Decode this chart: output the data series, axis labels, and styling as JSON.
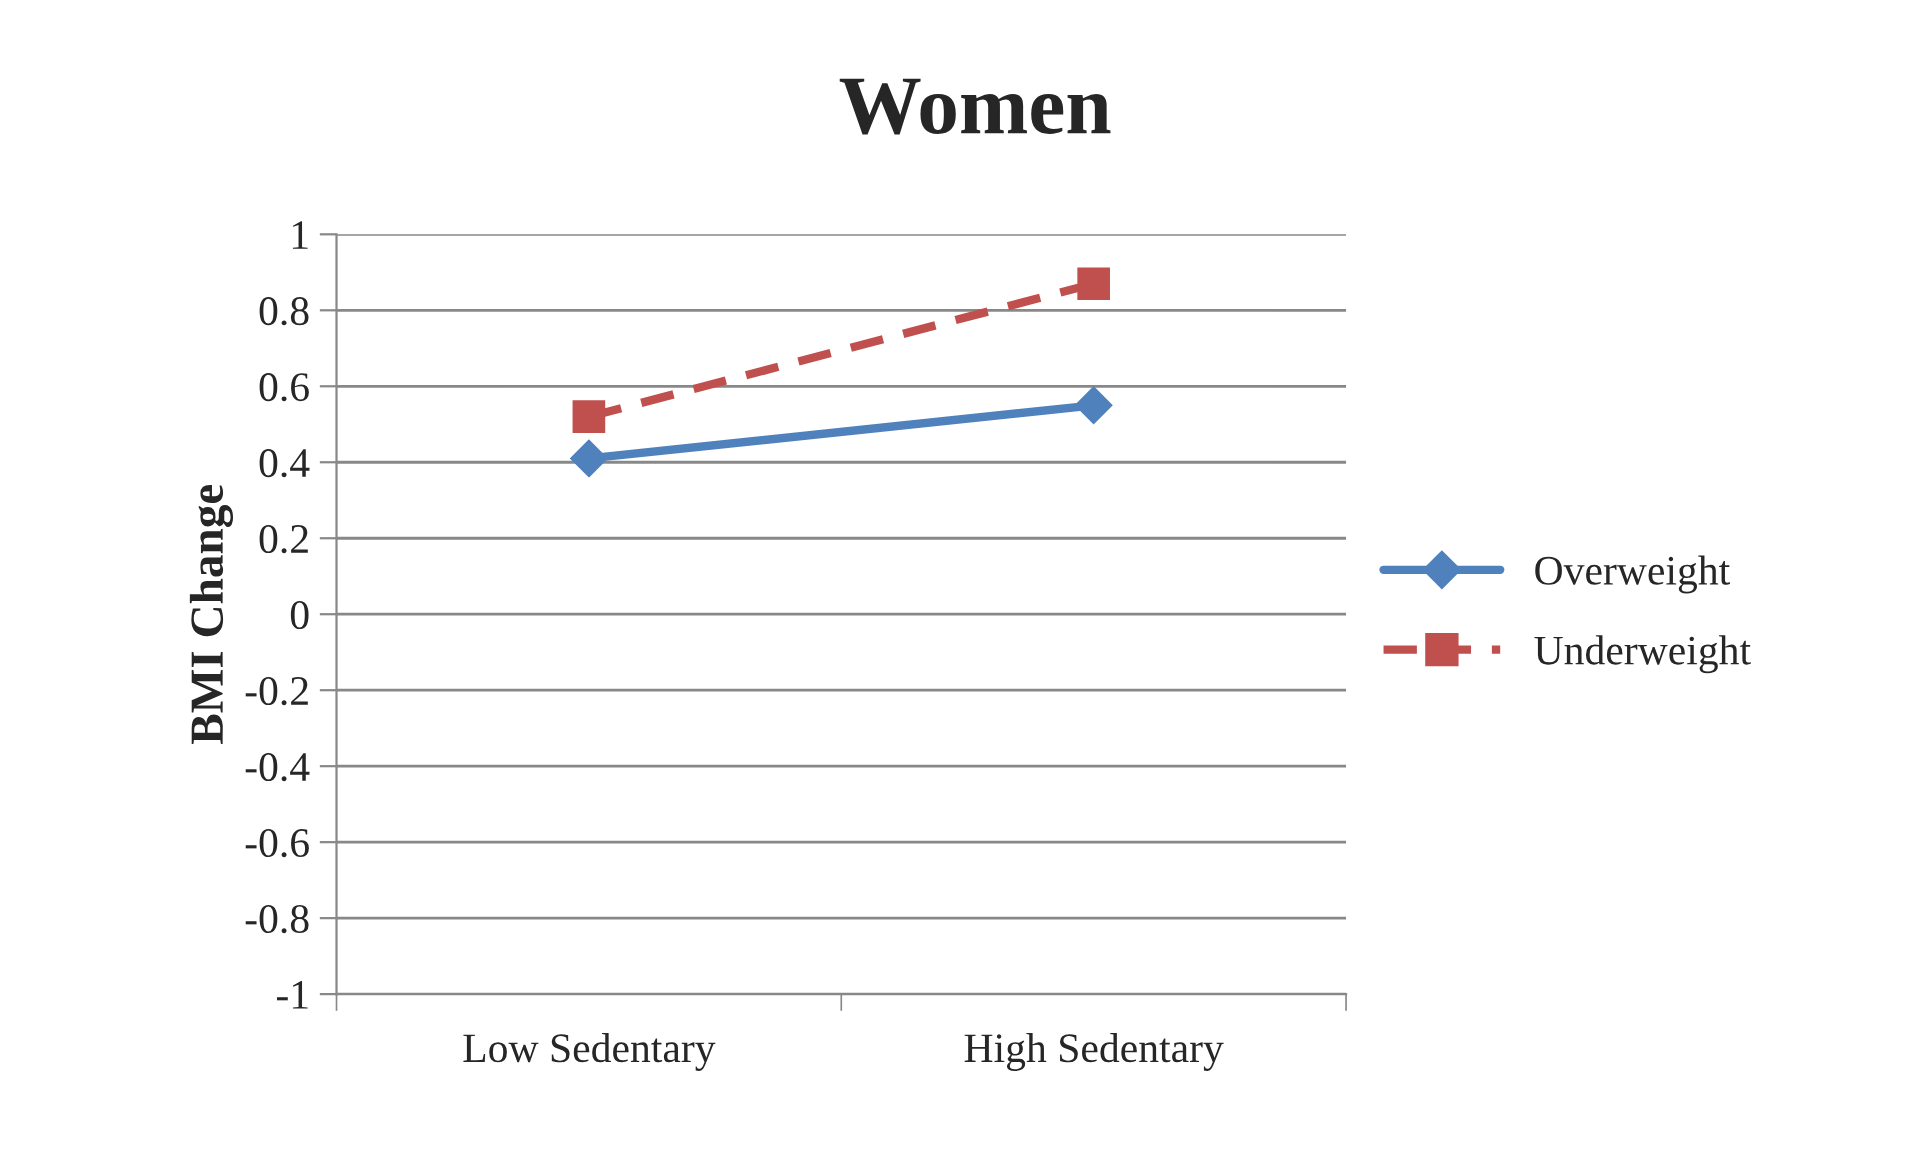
{
  "chart_data": {
    "type": "line",
    "title": "Women",
    "ylabel": "BMI Change",
    "categories": [
      "Low Sedentary",
      "High Sedentary"
    ],
    "series": [
      {
        "name": "Overweight",
        "color": "#4f81bd",
        "values": [
          0.41,
          0.55
        ],
        "marker": "diamond",
        "line_style": "solid"
      },
      {
        "name": "Underweight",
        "color": "#c0504d",
        "values": [
          0.52,
          0.87
        ],
        "marker": "square",
        "line_style": "dashed"
      }
    ],
    "ylim": [
      -1,
      1
    ],
    "yticks": [
      -1,
      -0.8,
      -0.6,
      -0.4,
      -0.2,
      0,
      0.2,
      0.4,
      0.6,
      0.8,
      1
    ],
    "grid": "y",
    "legend": "right"
  }
}
